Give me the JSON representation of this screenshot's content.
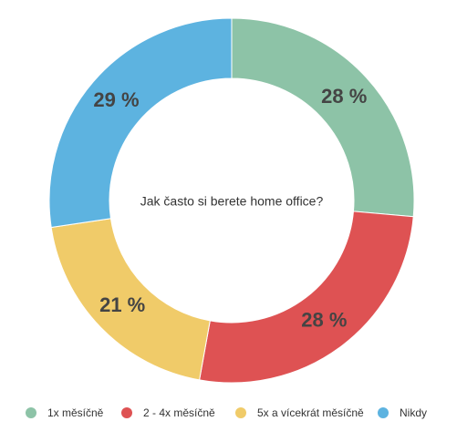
{
  "chart_data": {
    "type": "donut",
    "title": "Jak často si berete home office?",
    "categories": [
      "1x měsíčně",
      "2 - 4x měsíčně",
      "5x a vícekrát měsíčně",
      "Nikdy"
    ],
    "values": [
      28,
      28,
      21,
      29
    ],
    "value_labels": [
      "28 %",
      "28 %",
      "21 %",
      "29 %"
    ],
    "colors": [
      "#8dc3a7",
      "#de5253",
      "#f0cb69",
      "#5db3e0"
    ]
  }
}
